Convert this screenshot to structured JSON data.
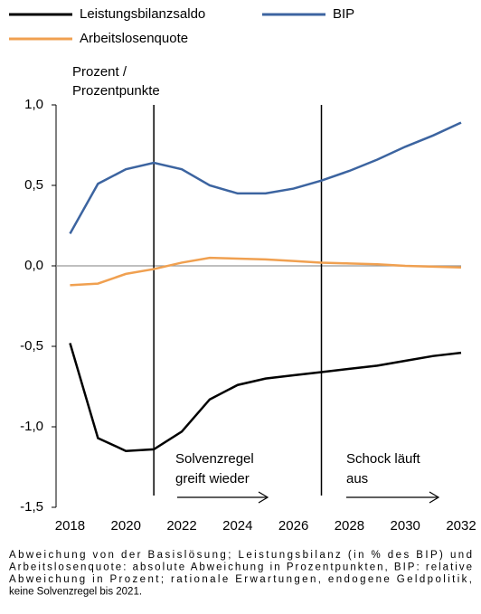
{
  "chart_data": {
    "type": "line",
    "y_label": [
      "Prozent /",
      "Prozentpunkte"
    ],
    "x": [
      2018,
      2019,
      2020,
      2021,
      2022,
      2023,
      2024,
      2025,
      2026,
      2027,
      2028,
      2029,
      2030,
      2031,
      2032
    ],
    "series": [
      {
        "name": "Leistungsbilanzsaldo",
        "color": "#000000",
        "values": [
          -0.48,
          -1.07,
          -1.15,
          -1.14,
          -1.03,
          -0.83,
          -0.74,
          -0.7,
          -0.68,
          -0.66,
          -0.64,
          -0.62,
          -0.59,
          -0.56,
          -0.54
        ]
      },
      {
        "name": "BIP",
        "color": "#3c64a0",
        "values": [
          0.2,
          0.51,
          0.6,
          0.64,
          0.6,
          0.5,
          0.45,
          0.45,
          0.48,
          0.53,
          0.59,
          0.66,
          0.74,
          0.81,
          0.89
        ]
      },
      {
        "name": "Arbeitslosenquote",
        "color": "#f0a050",
        "values": [
          -0.12,
          -0.11,
          -0.05,
          -0.02,
          0.02,
          0.05,
          0.045,
          0.04,
          0.03,
          0.02,
          0.015,
          0.01,
          0.0,
          -0.005,
          -0.01
        ]
      }
    ],
    "xlim": [
      2017.5,
      2032
    ],
    "xticks": [
      2018,
      2020,
      2022,
      2024,
      2026,
      2028,
      2030,
      2032
    ],
    "ylim": [
      -1.5,
      1.0
    ],
    "yticks": [
      {
        "value": -1.5,
        "label": "-1,5"
      },
      {
        "value": -1.0,
        "label": "-1,0"
      },
      {
        "value": -0.5,
        "label": "-0,5"
      },
      {
        "value": 0.0,
        "label": "0,0"
      },
      {
        "value": 0.5,
        "label": "0,5"
      },
      {
        "value": 1.0,
        "label": "1,0"
      }
    ],
    "vlines": [
      2021,
      2027
    ],
    "annotations": [
      [
        "Solvenzregel",
        "greift wieder"
      ],
      [
        "Schock läuft",
        "aus"
      ]
    ],
    "note": [
      "Abweichung von der Basislösung; Leistungsbilanz (in % des BIP) und",
      "Arbeitslosenquote: absolute Abweichung in Prozentpunkten, BIP: relative",
      "Abweichung in Prozent; rationale Erwartungen, endogene Geldpolitik,",
      "keine Solvenzregel bis 2021."
    ]
  }
}
